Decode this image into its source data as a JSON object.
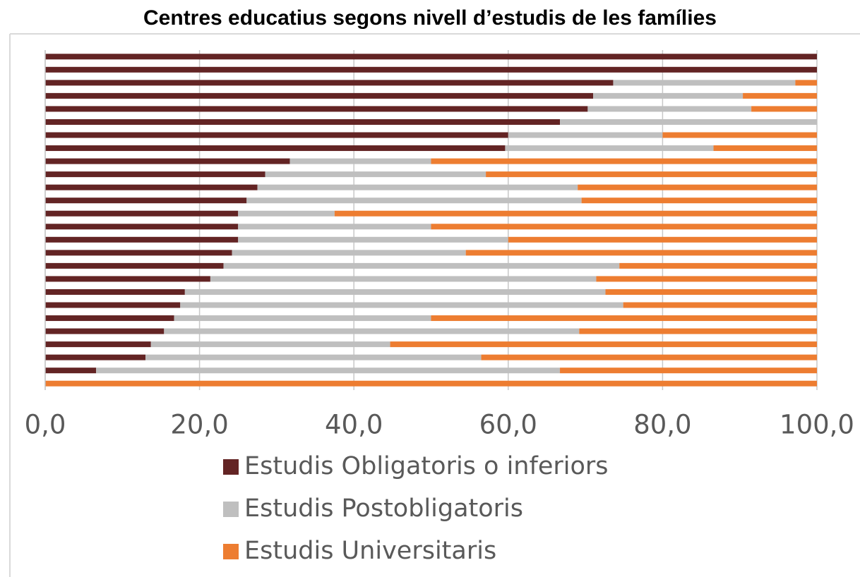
{
  "chart_data": {
    "type": "stacked_bar_horizontal",
    "title": "Centres educatius segons nivell d’estudis de les famílies",
    "categories": [
      null,
      null,
      null,
      null,
      null,
      null,
      null,
      null,
      null,
      null,
      null,
      null,
      null,
      null,
      null,
      null,
      null,
      null,
      null,
      null,
      null,
      null,
      null,
      null,
      null,
      null
    ],
    "series": [
      {
        "name": "Estudis Obligatoris o inferiors",
        "color": "#632424",
        "values": [
          100,
          100,
          73.6,
          71.0,
          70.3,
          66.7,
          60.0,
          59.6,
          31.7,
          28.5,
          27.5,
          26.1,
          25.0,
          25.0,
          25.0,
          24.2,
          23.1,
          21.4,
          18.1,
          17.5,
          16.7,
          15.4,
          13.7,
          13.0,
          6.6,
          0
        ]
      },
      {
        "name": "Estudis Postobligatoris",
        "color": "#bfbfbf",
        "values": [
          0,
          0,
          23.6,
          19.4,
          21.2,
          33.3,
          20.0,
          27.0,
          18.3,
          28.6,
          41.5,
          43.4,
          12.5,
          25.0,
          35.0,
          30.3,
          51.3,
          50.0,
          54.5,
          57.4,
          33.3,
          53.8,
          31.0,
          43.5,
          60.1,
          0
        ]
      },
      {
        "name": "Estudis Universitaris",
        "color": "#ed7d31",
        "values": [
          0,
          0,
          2.8,
          9.6,
          8.5,
          0,
          20.0,
          13.4,
          50.0,
          42.9,
          31.0,
          30.5,
          62.5,
          50.0,
          40.0,
          45.5,
          25.6,
          28.6,
          27.4,
          25.1,
          50.0,
          30.8,
          55.3,
          43.5,
          33.3,
          100
        ]
      }
    ],
    "xlim": [
      0,
      100
    ],
    "xticks": [
      {
        "value": 0,
        "label": "0,0"
      },
      {
        "value": 20,
        "label": "20,0"
      },
      {
        "value": 40,
        "label": "40,0"
      },
      {
        "value": 60,
        "label": "60,0"
      },
      {
        "value": 80,
        "label": "80,0"
      },
      {
        "value": 100,
        "label": "100,0"
      }
    ],
    "grid": true
  }
}
